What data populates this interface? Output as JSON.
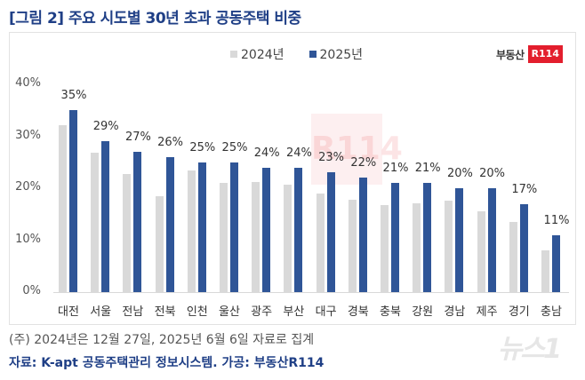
{
  "title": "[그림 2] 주요 시도별 30년 초과 공동주택 비중",
  "legend": [
    {
      "label": "2024년",
      "color": "#d9d9d9"
    },
    {
      "label": "2025년",
      "color": "#2f5597"
    }
  ],
  "brand": {
    "text": "부동산",
    "badge": "R114",
    "badge_color": "#e31e2d"
  },
  "watermark": "R114",
  "note": "(주) 2024년은 12월 27일, 2025년 6월 6일 자료로 집계",
  "source": "자료: K-apt 공동주택관리 정보시스템. 가공: 부동산R114",
  "news_logo": "뉴스1",
  "chart_data": {
    "type": "bar",
    "title": "[그림 2] 주요 시도별 30년 초과 공동주택 비중",
    "xlabel": "",
    "ylabel": "",
    "ylim": [
      0,
      40
    ],
    "yticks": [
      "0%",
      "10%",
      "20%",
      "30%",
      "40%"
    ],
    "grid": false,
    "legend_position": "top",
    "categories": [
      "대전",
      "서울",
      "전남",
      "전북",
      "인천",
      "울산",
      "광주",
      "부산",
      "대구",
      "경북",
      "충북",
      "강원",
      "경남",
      "제주",
      "경기",
      "충남"
    ],
    "series": [
      {
        "name": "2024년",
        "color": "#d9d9d9",
        "values": [
          32.1,
          26.8,
          22.7,
          18.5,
          23.4,
          21.0,
          21.2,
          20.7,
          19.0,
          17.8,
          16.8,
          17.1,
          17.6,
          15.6,
          13.5,
          8.0
        ]
      },
      {
        "name": "2025년",
        "color": "#2f5597",
        "values": [
          35,
          29,
          27,
          26,
          25,
          25,
          24,
          24,
          23,
          22,
          21,
          21,
          20,
          20,
          17,
          11
        ]
      }
    ],
    "data_labels_2025": [
      "35%",
      "29%",
      "27%",
      "26%",
      "25%",
      "25%",
      "24%",
      "24%",
      "23%",
      "22%",
      "21%",
      "21%",
      "20%",
      "20%",
      "17%",
      "11%"
    ]
  }
}
